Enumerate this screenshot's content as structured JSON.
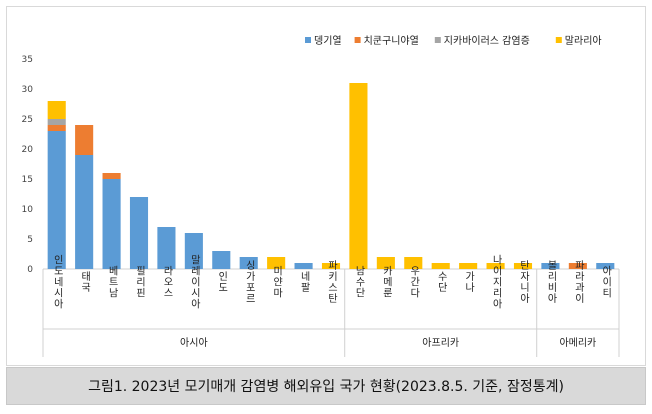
{
  "caption": "그림1. 2023년 모기매개 감염병 해외유입 국가 현황(2023.8.5. 기준, 잠정통계)",
  "chart_data": {
    "type": "bar",
    "stacked": true,
    "ylim": [
      0,
      35
    ],
    "yticks": [
      0,
      5,
      10,
      15,
      20,
      25,
      30,
      35
    ],
    "grid": false,
    "legend_position": "top-right",
    "categories": [
      "인도네시아",
      "태국",
      "베트남",
      "필리핀",
      "라오스",
      "말레이시아",
      "인도",
      "싱가포르",
      "미얀마",
      "네팔",
      "파키스탄",
      "남수단",
      "카메룬",
      "우간다",
      "수단",
      "가나",
      "나이지리아",
      "탄자니아",
      "볼리비아",
      "파라과이",
      "아이티"
    ],
    "groups": [
      {
        "label": "아시아",
        "count": 11
      },
      {
        "label": "아프리카",
        "count": 7
      },
      {
        "label": "아메리카",
        "count": 3
      }
    ],
    "series": [
      {
        "name": "뎅기열",
        "color": "#5b9bd5",
        "values": [
          23,
          19,
          15,
          12,
          7,
          6,
          3,
          2,
          0,
          1,
          0,
          0,
          0,
          0,
          0,
          0,
          0,
          0,
          1,
          0,
          1
        ]
      },
      {
        "name": "치쿤구니야열",
        "color": "#ed7d31",
        "values": [
          1,
          5,
          1,
          0,
          0,
          0,
          0,
          0,
          0,
          0,
          0,
          0,
          0,
          0,
          0,
          0,
          0,
          0,
          0,
          1,
          0
        ]
      },
      {
        "name": "지카바이러스 감염증",
        "color": "#a5a5a5",
        "values": [
          1,
          0,
          0,
          0,
          0,
          0,
          0,
          0,
          0,
          0,
          0,
          0,
          0,
          0,
          0,
          0,
          0,
          0,
          0,
          0,
          0
        ]
      },
      {
        "name": "말라리아",
        "color": "#ffc000",
        "values": [
          3,
          0,
          0,
          0,
          0,
          0,
          0,
          0,
          2,
          0,
          1,
          31,
          2,
          2,
          1,
          1,
          1,
          1,
          0,
          0,
          0
        ]
      }
    ]
  }
}
